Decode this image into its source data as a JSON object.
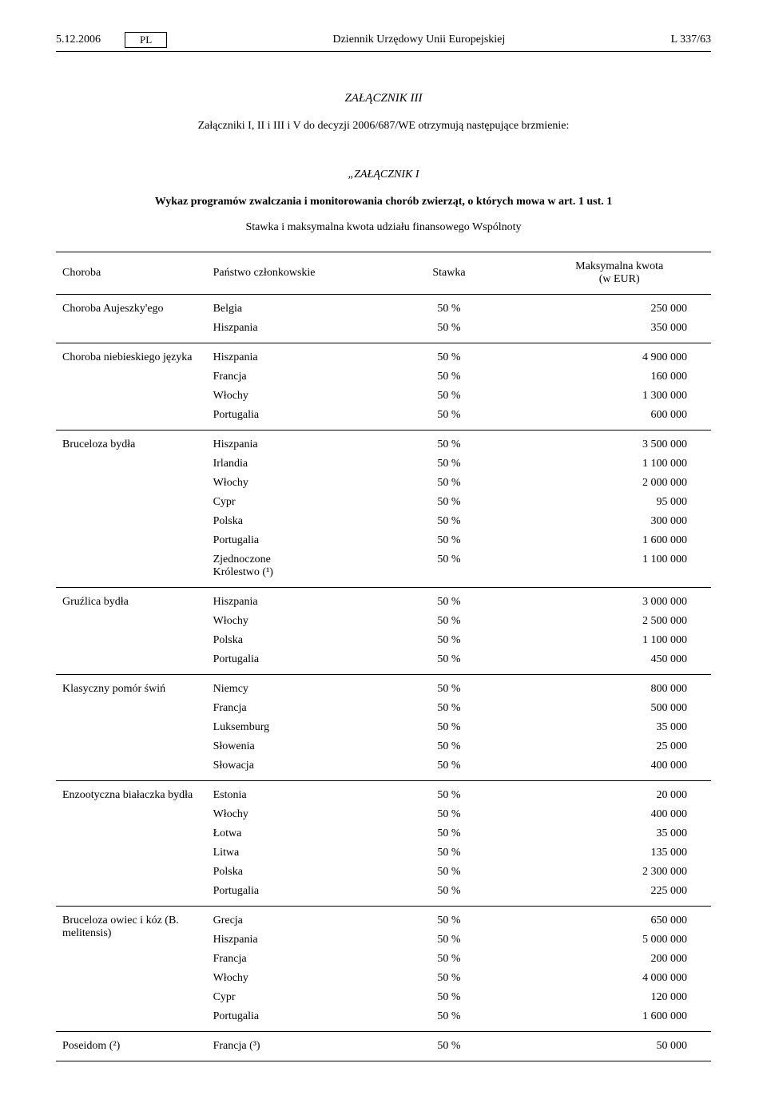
{
  "header": {
    "date": "5.12.2006",
    "lang": "PL",
    "journal": "Dziennik Urzędowy Unii Europejskiej",
    "pageRef": "L 337/63"
  },
  "annex": {
    "title": "ZAŁĄCZNIK III",
    "subtitle": "Załączniki I, II i III i V do decyzji 2006/687/WE otrzymują następujące brzmienie:",
    "quote": "„ZAŁĄCZNIK I",
    "boldLine": "Wykaz programów zwalczania i monitorowania chorób zwierząt, o których mowa w art. 1 ust. 1",
    "subline": "Stawka i maksymalna kwota udziału finansowego Wspólnoty"
  },
  "table": {
    "headers": {
      "disease": "Choroba",
      "state": "Państwo członkowskie",
      "rate": "Stawka",
      "max": "Maksymalna kwota\n(w EUR)"
    },
    "groups": [
      {
        "disease": "Choroba Aujeszky'ego",
        "rows": [
          {
            "state": "Belgia",
            "rate": "50 %",
            "max": "250 000"
          },
          {
            "state": "Hiszpania",
            "rate": "50 %",
            "max": "350 000"
          }
        ]
      },
      {
        "disease": "Choroba niebieskiego języka",
        "rows": [
          {
            "state": "Hiszpania",
            "rate": "50 %",
            "max": "4 900 000"
          },
          {
            "state": "Francja",
            "rate": "50 %",
            "max": "160 000"
          },
          {
            "state": "Włochy",
            "rate": "50 %",
            "max": "1 300 000"
          },
          {
            "state": "Portugalia",
            "rate": "50 %",
            "max": "600 000"
          }
        ]
      },
      {
        "disease": "Bruceloza bydła",
        "rows": [
          {
            "state": "Hiszpania",
            "rate": "50 %",
            "max": "3 500 000"
          },
          {
            "state": "Irlandia",
            "rate": "50 %",
            "max": "1 100 000"
          },
          {
            "state": "Włochy",
            "rate": "50 %",
            "max": "2 000 000"
          },
          {
            "state": "Cypr",
            "rate": "50 %",
            "max": "95 000"
          },
          {
            "state": "Polska",
            "rate": "50 %",
            "max": "300 000"
          },
          {
            "state": "Portugalia",
            "rate": "50 %",
            "max": "1 600 000"
          },
          {
            "state": "Zjednoczone\nKrólestwo (¹)",
            "rate": "50 %",
            "max": "1 100 000"
          }
        ]
      },
      {
        "disease": "Gruźlica bydła",
        "rows": [
          {
            "state": "Hiszpania",
            "rate": "50 %",
            "max": "3 000 000"
          },
          {
            "state": "Włochy",
            "rate": "50 %",
            "max": "2 500 000"
          },
          {
            "state": "Polska",
            "rate": "50 %",
            "max": "1 100 000"
          },
          {
            "state": "Portugalia",
            "rate": "50 %",
            "max": "450 000"
          }
        ]
      },
      {
        "disease": "Klasyczny pomór świń",
        "rows": [
          {
            "state": "Niemcy",
            "rate": "50 %",
            "max": "800 000"
          },
          {
            "state": "Francja",
            "rate": "50 %",
            "max": "500 000"
          },
          {
            "state": "Luksemburg",
            "rate": "50 %",
            "max": "35 000"
          },
          {
            "state": "Słowenia",
            "rate": "50 %",
            "max": "25 000"
          },
          {
            "state": "Słowacja",
            "rate": "50 %",
            "max": "400 000"
          }
        ]
      },
      {
        "disease": "Enzootyczna białaczka bydła",
        "rows": [
          {
            "state": "Estonia",
            "rate": "50 %",
            "max": "20 000"
          },
          {
            "state": "Włochy",
            "rate": "50 %",
            "max": "400 000"
          },
          {
            "state": "Łotwa",
            "rate": "50 %",
            "max": "35 000"
          },
          {
            "state": "Litwa",
            "rate": "50 %",
            "max": "135 000"
          },
          {
            "state": "Polska",
            "rate": "50 %",
            "max": "2 300 000"
          },
          {
            "state": "Portugalia",
            "rate": "50 %",
            "max": "225 000"
          }
        ]
      },
      {
        "disease": "Bruceloza owiec i kóz (B. melitensis)",
        "rows": [
          {
            "state": "Grecja",
            "rate": "50 %",
            "max": "650 000"
          },
          {
            "state": "Hiszpania",
            "rate": "50 %",
            "max": "5 000 000"
          },
          {
            "state": "Francja",
            "rate": "50 %",
            "max": "200 000"
          },
          {
            "state": "Włochy",
            "rate": "50 %",
            "max": "4 000 000"
          },
          {
            "state": "Cypr",
            "rate": "50 %",
            "max": "120 000"
          },
          {
            "state": "Portugalia",
            "rate": "50 %",
            "max": "1 600 000"
          }
        ]
      },
      {
        "disease": "Poseidom (²)",
        "rows": [
          {
            "state": "Francja (³)",
            "rate": "50 %",
            "max": "50 000"
          }
        ]
      }
    ]
  }
}
